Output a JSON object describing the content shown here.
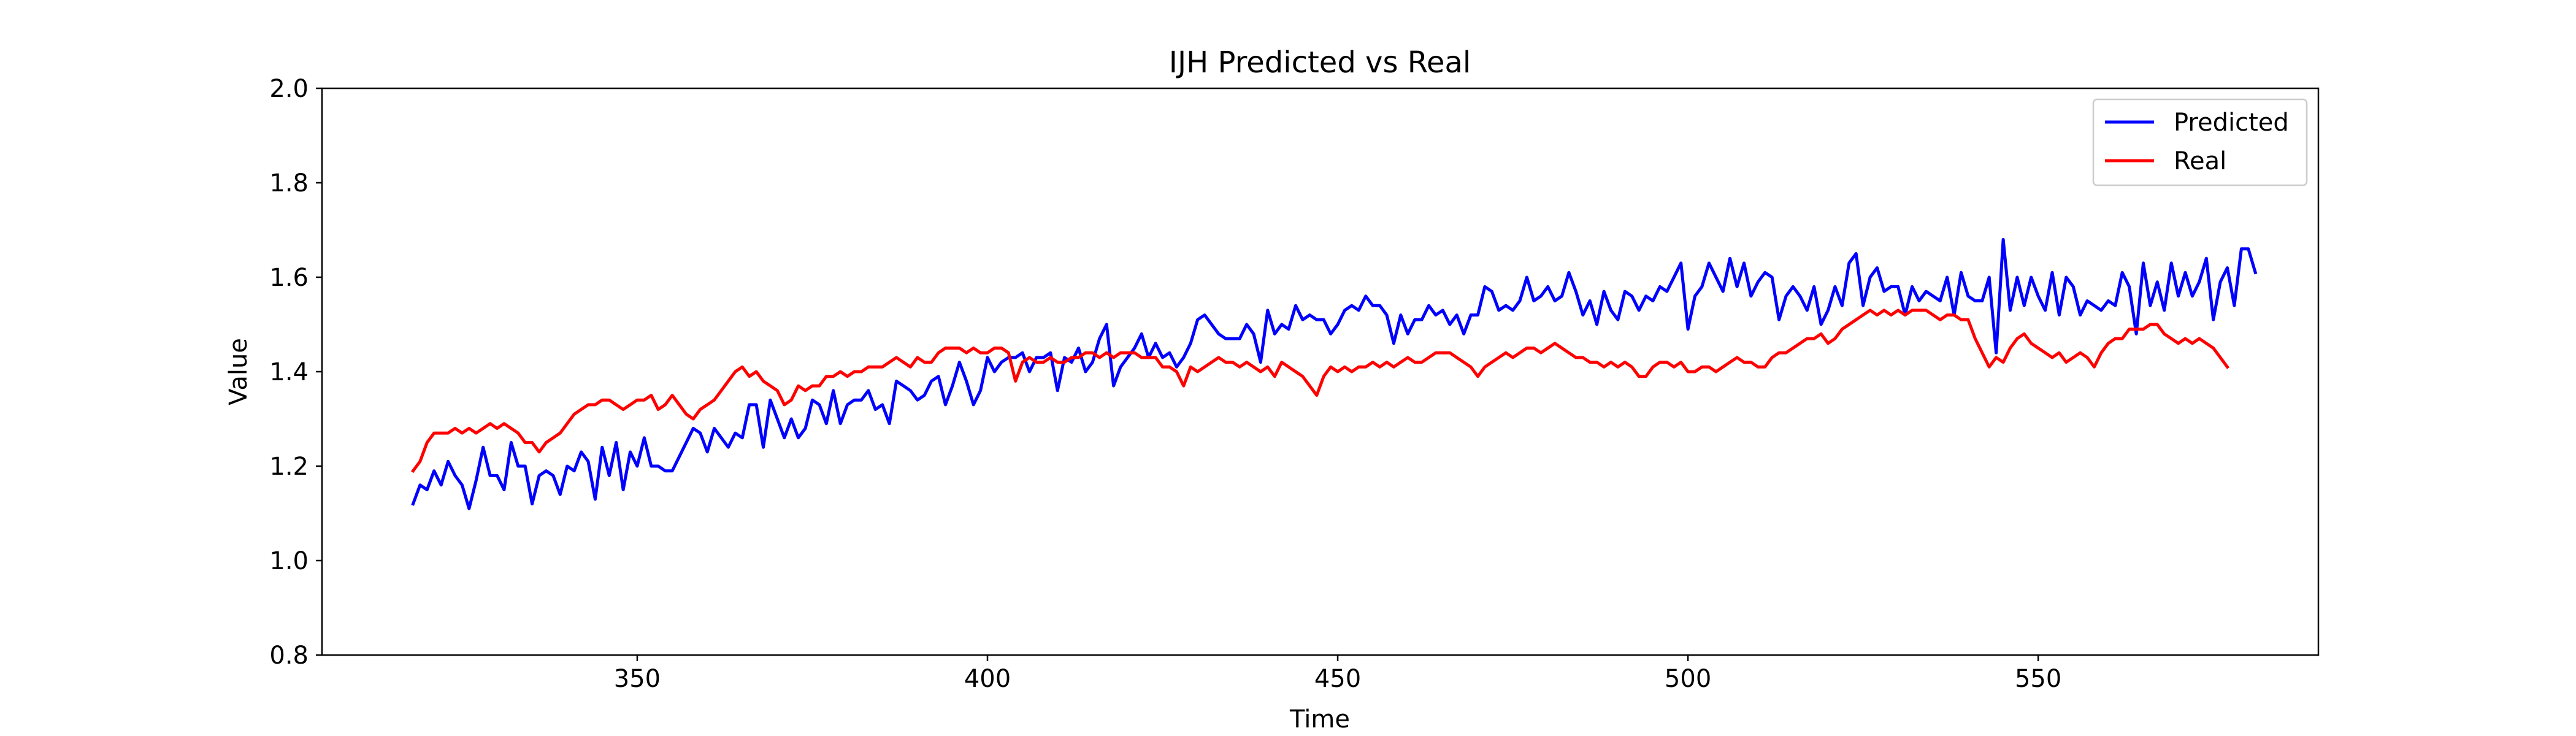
{
  "chart_data": {
    "type": "line",
    "title": "IJH Predicted vs Real",
    "xlabel": "Time",
    "ylabel": "Value",
    "xlim": [
      305,
      590
    ],
    "ylim": [
      0.8,
      2.0
    ],
    "xticks": [
      350,
      400,
      450,
      500,
      550
    ],
    "xtick_labels": [
      "350",
      "400",
      "450",
      "500",
      "550"
    ],
    "yticks": [
      0.8,
      1.0,
      1.2,
      1.4,
      1.6,
      1.8,
      2.0
    ],
    "ytick_labels": [
      "0.8",
      "1.0",
      "1.2",
      "1.4",
      "1.6",
      "1.8",
      "2.0"
    ],
    "grid": false,
    "legend_position": "top-right",
    "x_start": 318,
    "series": [
      {
        "name": "Predicted",
        "color": "#0000ff",
        "values": [
          1.12,
          1.16,
          1.15,
          1.19,
          1.16,
          1.21,
          1.18,
          1.16,
          1.11,
          1.17,
          1.24,
          1.18,
          1.18,
          1.15,
          1.25,
          1.2,
          1.2,
          1.12,
          1.18,
          1.19,
          1.18,
          1.14,
          1.2,
          1.19,
          1.23,
          1.21,
          1.13,
          1.24,
          1.18,
          1.25,
          1.15,
          1.23,
          1.2,
          1.26,
          1.2,
          1.2,
          1.19,
          1.19,
          1.22,
          1.25,
          1.28,
          1.27,
          1.23,
          1.28,
          1.26,
          1.24,
          1.27,
          1.26,
          1.33,
          1.33,
          1.24,
          1.34,
          1.3,
          1.26,
          1.3,
          1.26,
          1.28,
          1.34,
          1.33,
          1.29,
          1.36,
          1.29,
          1.33,
          1.34,
          1.34,
          1.36,
          1.32,
          1.33,
          1.29,
          1.38,
          1.37,
          1.36,
          1.34,
          1.35,
          1.38,
          1.39,
          1.33,
          1.37,
          1.42,
          1.38,
          1.33,
          1.36,
          1.43,
          1.4,
          1.42,
          1.43,
          1.43,
          1.44,
          1.4,
          1.43,
          1.43,
          1.44,
          1.36,
          1.43,
          1.42,
          1.45,
          1.4,
          1.42,
          1.47,
          1.5,
          1.37,
          1.41,
          1.43,
          1.45,
          1.48,
          1.43,
          1.46,
          1.43,
          1.44,
          1.41,
          1.43,
          1.46,
          1.51,
          1.52,
          1.5,
          1.48,
          1.47,
          1.47,
          1.47,
          1.5,
          1.48,
          1.42,
          1.53,
          1.48,
          1.5,
          1.49,
          1.54,
          1.51,
          1.52,
          1.51,
          1.51,
          1.48,
          1.5,
          1.53,
          1.54,
          1.53,
          1.56,
          1.54,
          1.54,
          1.52,
          1.46,
          1.52,
          1.48,
          1.51,
          1.51,
          1.54,
          1.52,
          1.53,
          1.5,
          1.52,
          1.48,
          1.52,
          1.52,
          1.58,
          1.57,
          1.53,
          1.54,
          1.53,
          1.55,
          1.6,
          1.55,
          1.56,
          1.58,
          1.55,
          1.56,
          1.61,
          1.57,
          1.52,
          1.55,
          1.5,
          1.57,
          1.53,
          1.51,
          1.57,
          1.56,
          1.53,
          1.56,
          1.55,
          1.58,
          1.57,
          1.6,
          1.63,
          1.49,
          1.56,
          1.58,
          1.63,
          1.6,
          1.57,
          1.64,
          1.58,
          1.63,
          1.56,
          1.59,
          1.61,
          1.6,
          1.51,
          1.56,
          1.58,
          1.56,
          1.53,
          1.58,
          1.5,
          1.53,
          1.58,
          1.54,
          1.63,
          1.65,
          1.54,
          1.6,
          1.62,
          1.57,
          1.58,
          1.58,
          1.52,
          1.58,
          1.55,
          1.57,
          1.56,
          1.55,
          1.6,
          1.52,
          1.61,
          1.56,
          1.55,
          1.55,
          1.6,
          1.44,
          1.68,
          1.53,
          1.6,
          1.54,
          1.6,
          1.56,
          1.53,
          1.61,
          1.52,
          1.6,
          1.58,
          1.52,
          1.55,
          1.54,
          1.53,
          1.55,
          1.54,
          1.61,
          1.58,
          1.48,
          1.63,
          1.54,
          1.59,
          1.53,
          1.63,
          1.56,
          1.61,
          1.56,
          1.59,
          1.64,
          1.51,
          1.59,
          1.62,
          1.54,
          1.66,
          1.66,
          1.61
        ]
      },
      {
        "name": "Real",
        "color": "#ff0000",
        "values": [
          1.19,
          1.21,
          1.25,
          1.27,
          1.27,
          1.27,
          1.28,
          1.27,
          1.28,
          1.27,
          1.28,
          1.29,
          1.28,
          1.29,
          1.28,
          1.27,
          1.25,
          1.25,
          1.23,
          1.25,
          1.26,
          1.27,
          1.29,
          1.31,
          1.32,
          1.33,
          1.33,
          1.34,
          1.34,
          1.33,
          1.32,
          1.33,
          1.34,
          1.34,
          1.35,
          1.32,
          1.33,
          1.35,
          1.33,
          1.31,
          1.3,
          1.32,
          1.33,
          1.34,
          1.36,
          1.38,
          1.4,
          1.41,
          1.39,
          1.4,
          1.38,
          1.37,
          1.36,
          1.33,
          1.34,
          1.37,
          1.36,
          1.37,
          1.37,
          1.39,
          1.39,
          1.4,
          1.39,
          1.4,
          1.4,
          1.41,
          1.41,
          1.41,
          1.42,
          1.43,
          1.42,
          1.41,
          1.43,
          1.42,
          1.42,
          1.44,
          1.45,
          1.45,
          1.45,
          1.44,
          1.45,
          1.44,
          1.44,
          1.45,
          1.45,
          1.44,
          1.38,
          1.42,
          1.43,
          1.42,
          1.42,
          1.43,
          1.42,
          1.42,
          1.43,
          1.43,
          1.44,
          1.44,
          1.43,
          1.44,
          1.43,
          1.44,
          1.44,
          1.44,
          1.43,
          1.43,
          1.43,
          1.41,
          1.41,
          1.4,
          1.37,
          1.41,
          1.4,
          1.41,
          1.42,
          1.43,
          1.42,
          1.42,
          1.41,
          1.42,
          1.41,
          1.4,
          1.41,
          1.39,
          1.42,
          1.41,
          1.4,
          1.39,
          1.37,
          1.35,
          1.39,
          1.41,
          1.4,
          1.41,
          1.4,
          1.41,
          1.41,
          1.42,
          1.41,
          1.42,
          1.41,
          1.42,
          1.43,
          1.42,
          1.42,
          1.43,
          1.44,
          1.44,
          1.44,
          1.43,
          1.42,
          1.41,
          1.39,
          1.41,
          1.42,
          1.43,
          1.44,
          1.43,
          1.44,
          1.45,
          1.45,
          1.44,
          1.45,
          1.46,
          1.45,
          1.44,
          1.43,
          1.43,
          1.42,
          1.42,
          1.41,
          1.42,
          1.41,
          1.42,
          1.41,
          1.39,
          1.39,
          1.41,
          1.42,
          1.42,
          1.41,
          1.42,
          1.4,
          1.4,
          1.41,
          1.41,
          1.4,
          1.41,
          1.42,
          1.43,
          1.42,
          1.42,
          1.41,
          1.41,
          1.43,
          1.44,
          1.44,
          1.45,
          1.46,
          1.47,
          1.47,
          1.48,
          1.46,
          1.47,
          1.49,
          1.5,
          1.51,
          1.52,
          1.53,
          1.52,
          1.53,
          1.52,
          1.53,
          1.52,
          1.53,
          1.53,
          1.53,
          1.52,
          1.51,
          1.52,
          1.52,
          1.51,
          1.51,
          1.47,
          1.44,
          1.41,
          1.43,
          1.42,
          1.45,
          1.47,
          1.48,
          1.46,
          1.45,
          1.44,
          1.43,
          1.44,
          1.42,
          1.43,
          1.44,
          1.43,
          1.41,
          1.44,
          1.46,
          1.47,
          1.47,
          1.49,
          1.49,
          1.49,
          1.5,
          1.5,
          1.48,
          1.47,
          1.46,
          1.47,
          1.46,
          1.47,
          1.46,
          1.45,
          1.43,
          1.41
        ]
      }
    ]
  }
}
